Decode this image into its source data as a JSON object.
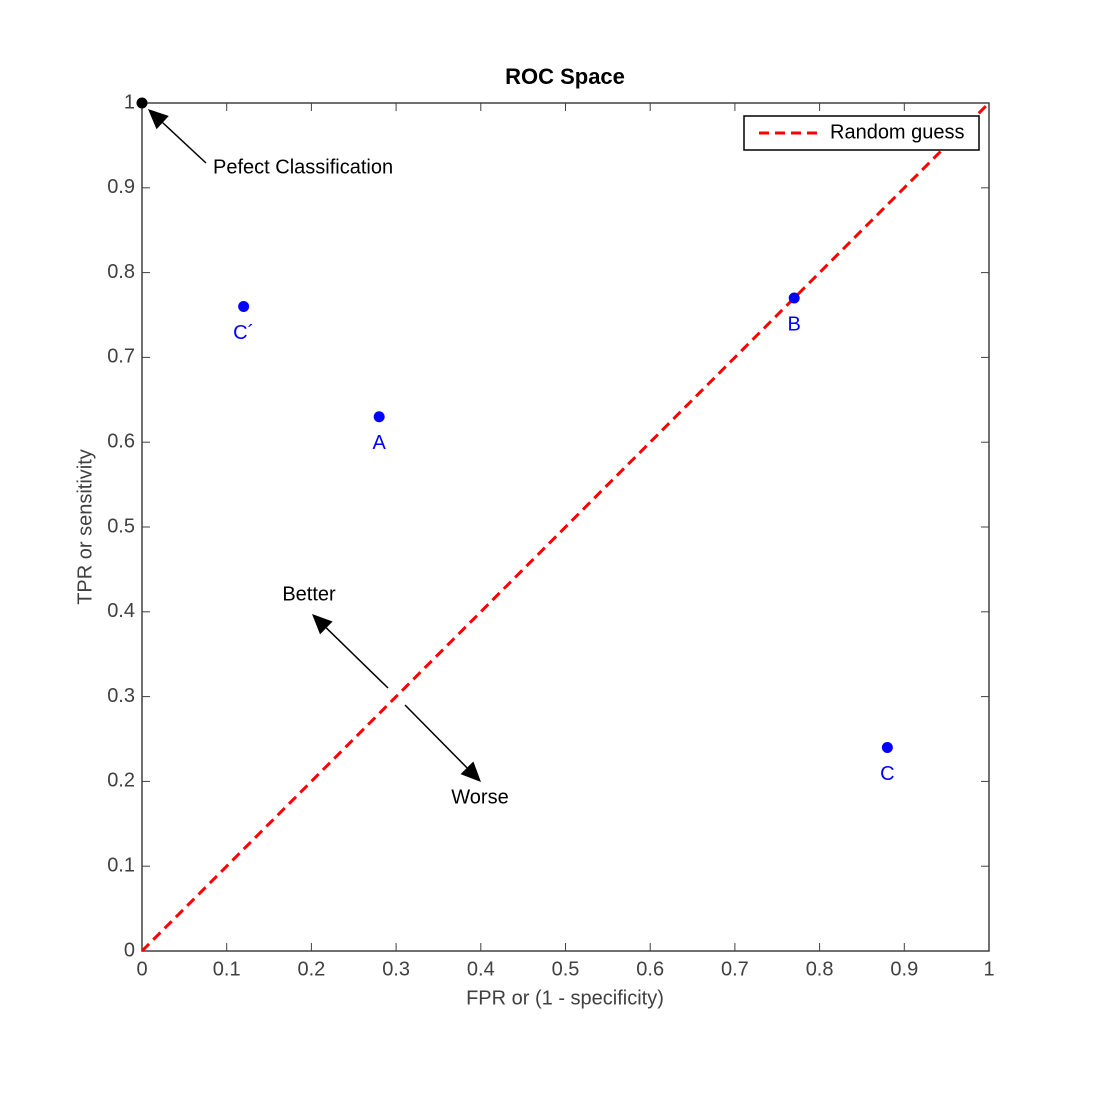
{
  "chart_data": {
    "type": "scatter",
    "title": "ROC Space",
    "x_label": "FPR or (1 - specificity)",
    "y_label": "TPR or sensitivity",
    "xlim": [
      0,
      1
    ],
    "ylim": [
      0,
      1
    ],
    "xticks": [
      0,
      0.1,
      0.2,
      0.3,
      0.4,
      0.5,
      0.6,
      0.7,
      0.8,
      0.9,
      1
    ],
    "yticks": [
      0,
      0.1,
      0.2,
      0.3,
      0.4,
      0.5,
      0.6,
      0.7,
      0.8,
      0.9,
      1
    ],
    "legend": "northeast",
    "series": [
      {
        "name": "Random guess",
        "color": "#ff0000",
        "style": "dashed",
        "x": [
          0,
          1
        ],
        "values": [
          0,
          1
        ]
      }
    ],
    "points": {
      "color": "#0000ff",
      "x": [
        0.12,
        0.28,
        0.77,
        0.88
      ],
      "values": [
        0.76,
        0.63,
        0.77,
        0.24
      ],
      "labels": [
        "C´",
        "A",
        "B",
        "C"
      ]
    },
    "perfect_point": {
      "color": "#000000",
      "x": 0,
      "y": 1
    },
    "annotations": [
      "Pefect Classification",
      "Better",
      "Worse"
    ]
  }
}
